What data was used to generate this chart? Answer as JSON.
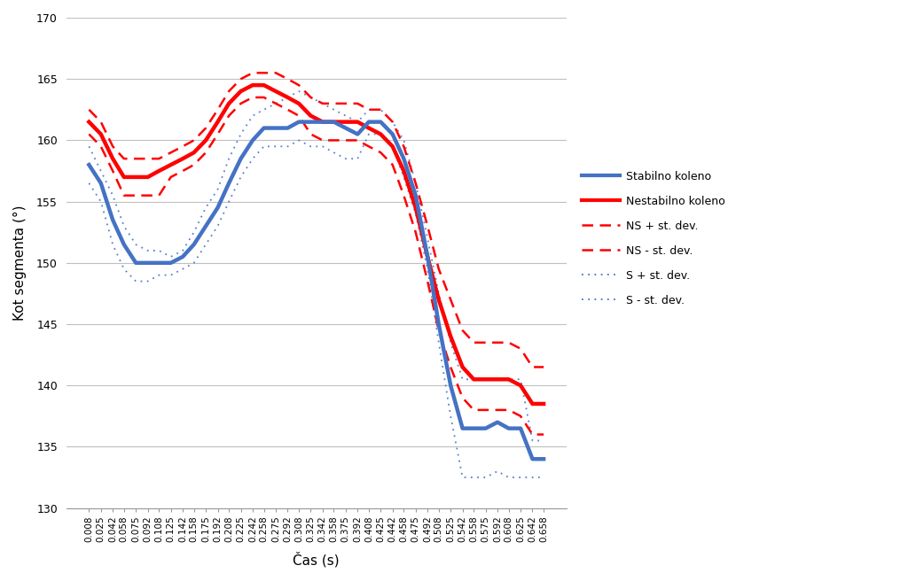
{
  "x": [
    0.008,
    0.025,
    0.042,
    0.058,
    0.075,
    0.092,
    0.108,
    0.125,
    0.142,
    0.158,
    0.175,
    0.192,
    0.208,
    0.225,
    0.242,
    0.258,
    0.275,
    0.292,
    0.308,
    0.325,
    0.342,
    0.358,
    0.375,
    0.392,
    0.408,
    0.425,
    0.442,
    0.458,
    0.475,
    0.492,
    0.508,
    0.525,
    0.542,
    0.558,
    0.575,
    0.592,
    0.608,
    0.625,
    0.642,
    0.658
  ],
  "stabilno": [
    158.0,
    156.5,
    153.5,
    151.5,
    150.0,
    150.0,
    150.0,
    150.0,
    150.5,
    151.5,
    153.0,
    154.5,
    156.5,
    158.5,
    160.0,
    161.0,
    161.0,
    161.0,
    161.5,
    161.5,
    161.5,
    161.5,
    161.0,
    160.5,
    161.5,
    161.5,
    160.5,
    158.5,
    155.5,
    150.5,
    145.0,
    140.0,
    136.5,
    136.5,
    136.5,
    137.0,
    136.5,
    136.5,
    134.0,
    134.0
  ],
  "nestabilno": [
    161.5,
    160.5,
    158.5,
    157.0,
    157.0,
    157.0,
    157.5,
    158.0,
    158.5,
    159.0,
    160.0,
    161.5,
    163.0,
    164.0,
    164.5,
    164.5,
    164.0,
    163.5,
    163.0,
    162.0,
    161.5,
    161.5,
    161.5,
    161.5,
    161.0,
    160.5,
    159.5,
    157.5,
    154.5,
    150.5,
    147.0,
    144.0,
    141.5,
    140.5,
    140.5,
    140.5,
    140.5,
    140.0,
    138.5,
    138.5
  ],
  "ns_plus": [
    162.5,
    161.5,
    159.5,
    158.5,
    158.5,
    158.5,
    158.5,
    159.0,
    159.5,
    160.0,
    161.0,
    162.5,
    164.0,
    165.0,
    165.5,
    165.5,
    165.5,
    165.0,
    164.5,
    163.5,
    163.0,
    163.0,
    163.0,
    163.0,
    162.5,
    162.5,
    161.5,
    159.5,
    156.5,
    153.0,
    149.5,
    147.0,
    144.5,
    143.5,
    143.5,
    143.5,
    143.5,
    143.0,
    141.5,
    141.5
  ],
  "ns_minus": [
    160.5,
    159.5,
    157.5,
    155.5,
    155.5,
    155.5,
    155.5,
    157.0,
    157.5,
    158.0,
    159.0,
    160.5,
    162.0,
    163.0,
    163.5,
    163.5,
    163.0,
    162.5,
    162.0,
    160.5,
    160.0,
    160.0,
    160.0,
    160.0,
    159.5,
    159.0,
    158.0,
    155.5,
    152.5,
    148.5,
    144.5,
    141.5,
    139.0,
    138.0,
    138.0,
    138.0,
    138.0,
    137.5,
    136.0,
    136.0
  ],
  "s_plus": [
    159.5,
    157.5,
    155.5,
    153.0,
    151.5,
    151.0,
    151.0,
    150.5,
    151.0,
    152.5,
    154.5,
    156.0,
    158.5,
    160.5,
    162.0,
    162.5,
    163.0,
    163.5,
    164.0,
    163.5,
    163.0,
    162.5,
    162.0,
    161.5,
    162.5,
    162.5,
    161.5,
    160.0,
    156.5,
    152.0,
    147.5,
    143.5,
    140.5,
    140.5,
    140.5,
    140.5,
    140.5,
    140.5,
    135.5,
    135.5
  ],
  "s_minus": [
    156.5,
    155.0,
    151.5,
    149.5,
    148.5,
    148.5,
    149.0,
    149.0,
    149.5,
    150.0,
    151.5,
    153.0,
    155.0,
    157.0,
    158.5,
    159.5,
    159.5,
    159.5,
    160.0,
    159.5,
    159.5,
    159.0,
    158.5,
    158.5,
    160.5,
    160.5,
    159.5,
    157.0,
    154.0,
    149.5,
    143.5,
    137.5,
    132.5,
    132.5,
    132.5,
    133.0,
    132.5,
    132.5,
    132.5,
    132.5
  ],
  "stabilno_color": "#4472C4",
  "nestabilno_color": "#FF0000",
  "ns_dev_color": "#FF0000",
  "s_dev_color": "#4472C4",
  "ylabel": "Kot segmenta (°)",
  "xlabel": "Čas (s)",
  "ylim_min": 130,
  "ylim_max": 170,
  "yticks": [
    130,
    135,
    140,
    145,
    150,
    155,
    160,
    165,
    170
  ],
  "legend_labels": [
    "Stabilno koleno",
    "Nestabilno koleno",
    "NS + st. dev.",
    "NS - st. dev.",
    "S + st. dev.",
    "S - st. dev."
  ],
  "bg_color": "#FFFFFF",
  "grid_color": "#C0C0C0"
}
